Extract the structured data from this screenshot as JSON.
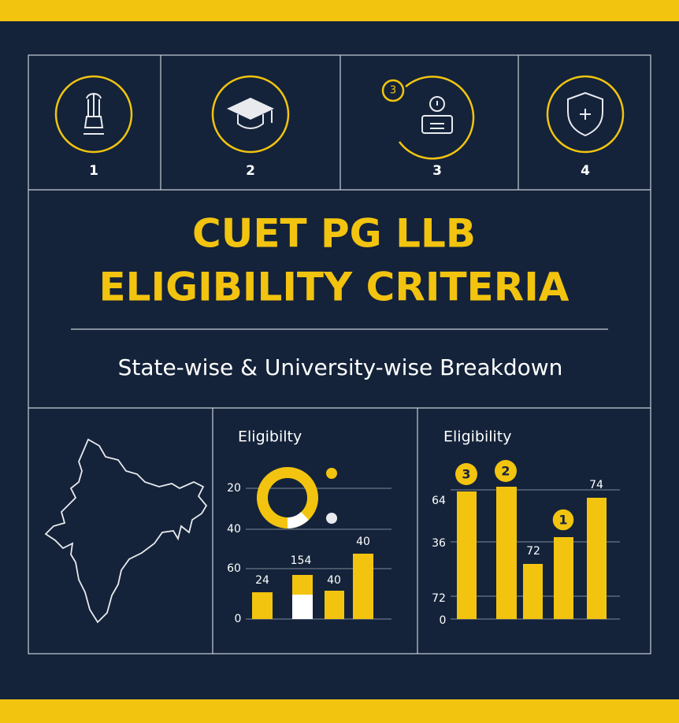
{
  "steps": [
    "1",
    "2",
    "3",
    "4"
  ],
  "step_badge": "3",
  "title": [
    "CUET PG LLB",
    "ELIGIBILITY CRITERIA"
  ],
  "subtitle": "State-wise & University-wise Breakdown",
  "panels": [
    {
      "title": "Eligibilty",
      "axis_labels": [
        "20",
        "40",
        "60",
        "0"
      ],
      "bar_labels": [
        "24",
        "154",
        "40",
        "40"
      ]
    },
    {
      "title": "Eligibility",
      "axis_labels": [
        "64",
        "36",
        "72",
        "0"
      ],
      "bar_labels": [
        "72",
        "74"
      ],
      "badges": [
        "3",
        "2",
        "1"
      ]
    }
  ]
}
